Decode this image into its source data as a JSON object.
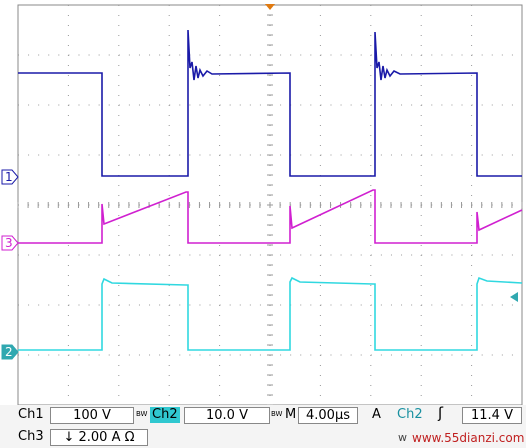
{
  "channel_markers": {
    "ch1": "1",
    "ch3": "3",
    "ch2": "2"
  },
  "status": {
    "ch1_label": "Ch1",
    "ch1_scale": "100 V",
    "bw1": "BW",
    "ch2_label": "Ch2",
    "ch2_scale": "10.0 V",
    "bw2": "BW",
    "time_label": "M",
    "time_scale": "4.00µs",
    "trigger_label": "A",
    "trigger_source": "Ch2",
    "trigger_level": "11.4 V",
    "ch3_label": "Ch3",
    "ch3_scale": "↓ 2.00 A Ω",
    "watermark_prefix": "w",
    "watermark": "www.55dianzi.com"
  }
}
